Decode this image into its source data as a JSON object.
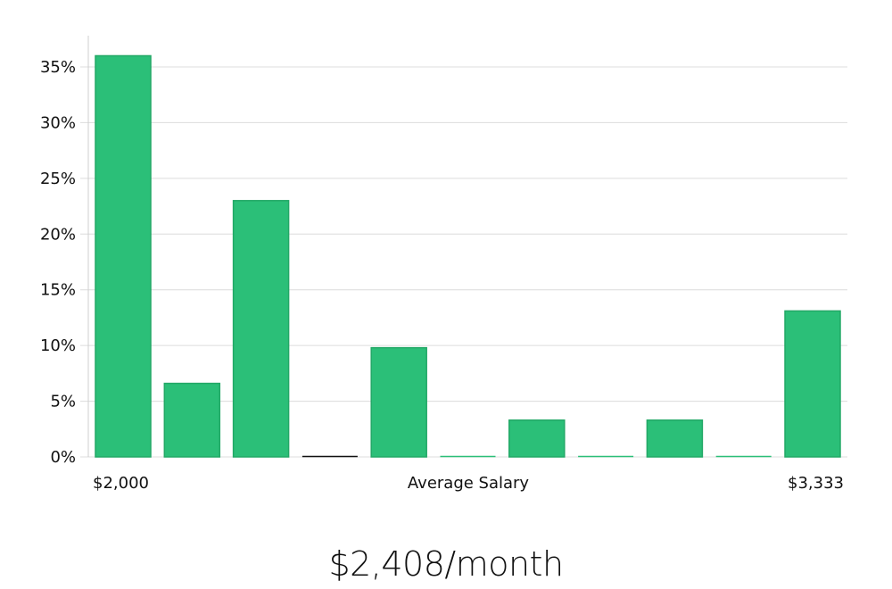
{
  "chart_data": {
    "type": "bar",
    "categories": [
      "$2,000",
      "",
      "",
      "",
      "",
      "",
      "",
      "",
      "",
      "",
      "$3,333"
    ],
    "values": [
      36,
      6.6,
      23,
      0,
      9.8,
      0,
      3.3,
      0,
      3.3,
      0,
      13.1
    ],
    "xlabel": "Average Salary",
    "ylabel": "",
    "ylim": [
      0,
      37.5
    ],
    "y_ticks": [
      "0%",
      "5%",
      "10%",
      "15%",
      "20%",
      "25%",
      "30%",
      "35%"
    ],
    "y_tick_values": [
      0,
      5,
      10,
      15,
      20,
      25,
      30,
      35
    ],
    "x_end_labels": {
      "left": "$2,000",
      "right": "$3,333"
    },
    "grid": true,
    "colors": {
      "bar": "#2bbf78",
      "bar_border": "#22a866",
      "empty_bar_first": "#111111",
      "empty_bar": "#2bbf78"
    }
  },
  "summary": "$2,408/month"
}
